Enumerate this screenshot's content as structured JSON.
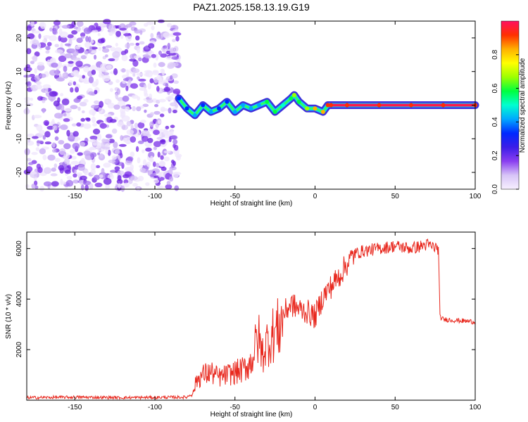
{
  "title": "PAZ1.2025.158.13.19.G19",
  "colors": {
    "snr_line": "#e8281e",
    "colorbar": [
      "#f7f0ff",
      "#d7c4f7",
      "#8a3ef0",
      "#3b1ee8",
      "#0028ff",
      "#00a8ff",
      "#00ffd0",
      "#00ff40",
      "#9cff00",
      "#ffff00",
      "#ffb000",
      "#ff3000",
      "#ff1060"
    ]
  },
  "chart_data": [
    {
      "type": "heatmap",
      "xlabel": "Height of straight line (km)",
      "ylabel": "Frequency (Hz)",
      "xlim": [
        -180,
        100
      ],
      "ylim": [
        -25,
        25
      ],
      "xticks": [
        -150,
        -100,
        -50,
        0,
        50,
        100
      ],
      "yticks": [
        -20,
        -10,
        0,
        10,
        20
      ],
      "noise_region_x": [
        -180,
        -85
      ],
      "ridge": {
        "x": [
          -85,
          -80,
          -75,
          -70,
          -65,
          -60,
          -55,
          -50,
          -45,
          -40,
          -35,
          -30,
          -25,
          -20,
          -15,
          -13,
          -10,
          -5,
          0,
          5,
          8,
          10,
          20,
          40,
          60,
          80,
          100
        ],
        "freq": [
          2,
          -1,
          -3,
          0,
          -2,
          -1,
          1,
          -2,
          0,
          -1,
          0,
          1,
          -2,
          0,
          2,
          3,
          1,
          -1,
          -1,
          -2,
          0,
          0,
          0,
          0,
          0,
          0,
          0
        ],
        "amplitude": [
          0.3,
          0.35,
          0.4,
          0.35,
          0.4,
          0.3,
          0.35,
          0.4,
          0.45,
          0.4,
          0.45,
          0.55,
          0.55,
          0.5,
          0.6,
          0.7,
          0.6,
          0.65,
          0.8,
          0.8,
          0.9,
          0.92,
          0.95,
          0.95,
          0.95,
          0.95,
          0.95
        ]
      }
    },
    {
      "type": "colorbar",
      "label": "Normalized spectral amplitude",
      "range": [
        0,
        1
      ],
      "ticks": [
        "0.0",
        "0.2",
        "0.4",
        "0.6",
        "0.8"
      ]
    },
    {
      "type": "line",
      "xlabel": "Height of straight line (km)",
      "ylabel": "SNR (10 * v/v)",
      "xlim": [
        -180,
        100
      ],
      "ylim": [
        0,
        6650
      ],
      "xticks": [
        -150,
        -100,
        -50,
        0,
        50,
        100
      ],
      "yticks": [
        2000,
        4000,
        6000
      ],
      "series": [
        {
          "x": [
            -180,
            -150,
            -120,
            -100,
            -80,
            -76,
            -74,
            -70,
            -65,
            -60,
            -55,
            -50,
            -45,
            -40,
            -37,
            -35,
            -33,
            -30,
            -25,
            -22,
            -20,
            -15,
            -10,
            -5,
            0,
            5,
            10,
            15,
            20,
            25,
            30,
            40,
            50,
            60,
            70,
            77,
            78,
            80,
            90,
            100
          ],
          "y": [
            100,
            120,
            100,
            110,
            120,
            300,
            800,
            1000,
            1100,
            900,
            1000,
            1100,
            1200,
            1500,
            2200,
            2400,
            1800,
            2300,
            2700,
            2900,
            3400,
            3800,
            3600,
            3500,
            3300,
            4100,
            4500,
            4900,
            5400,
            5800,
            5900,
            6000,
            6100,
            6000,
            6150,
            6000,
            3300,
            3200,
            3150,
            3100
          ]
        }
      ]
    }
  ]
}
